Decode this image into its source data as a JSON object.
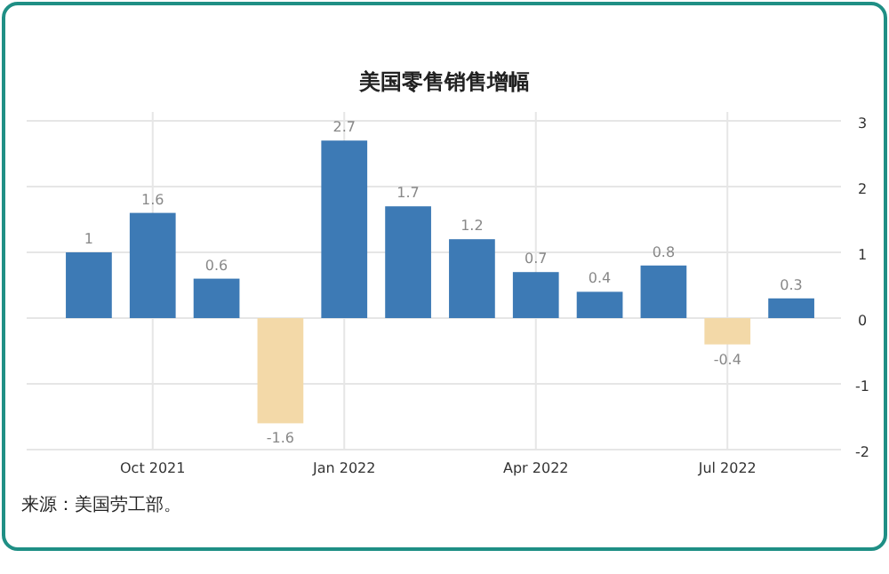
{
  "chart_data": {
    "type": "bar",
    "title": "美国零售销售增幅",
    "categories": [
      null,
      "Oct 2021",
      null,
      null,
      "Jan 2022",
      null,
      null,
      "Apr 2022",
      null,
      null,
      "Jul 2022",
      null
    ],
    "values": [
      1,
      1.6,
      0.6,
      -1.6,
      2.7,
      1.7,
      1.2,
      0.7,
      0.4,
      0.8,
      -0.4,
      0.3
    ],
    "colors": [
      "#3d7ab5",
      "#3d7ab5",
      "#3d7ab5",
      "#f3d9a8",
      "#3d7ab5",
      "#3d7ab5",
      "#3d7ab5",
      "#3d7ab5",
      "#3d7ab5",
      "#3d7ab5",
      "#f3d9a8",
      "#3d7ab5"
    ],
    "ylim": [
      -2,
      3
    ],
    "yticks": [
      -2,
      -1,
      0,
      1,
      2,
      3
    ],
    "grid": true,
    "data_labels": true,
    "annotations": [
      "来源：美国劳工部。"
    ]
  }
}
